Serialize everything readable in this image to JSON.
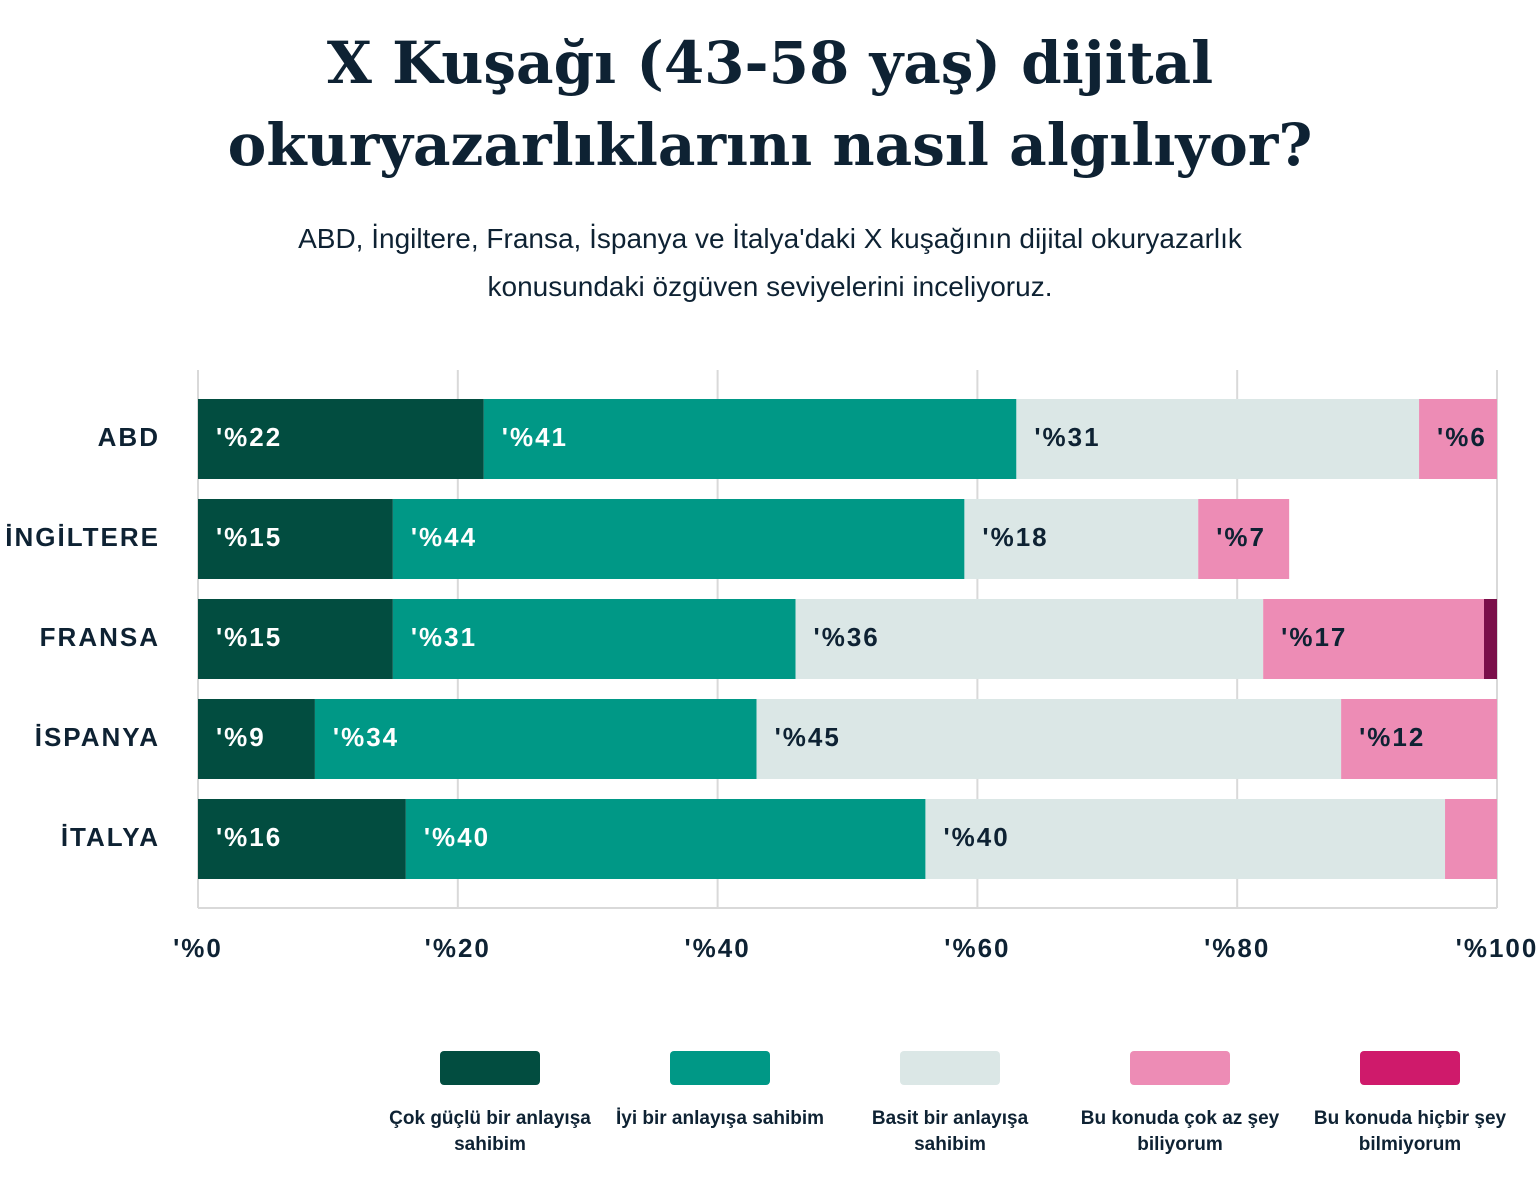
{
  "chart_data": {
    "type": "stacked-bar-horizontal",
    "title": "X Kuşağı (43-58 yaş) dijital okuryazarlıklarını nasıl algılıyor?",
    "subtitle": "ABD, İngiltere, Fransa, İspanya ve İtalya'daki X kuşağının dijital okuryazarlık konusundaki özgüven seviyelerini inceliyoruz.",
    "categories": [
      "ABD",
      "İNGİLTERE",
      "FRANSA",
      "İSPANYA",
      "İTALYA"
    ],
    "series": [
      {
        "name": "Çok güçlü bir anlayışa sahibim",
        "color": "#024d40",
        "values": [
          22,
          15,
          15,
          9,
          16
        ],
        "value_labels": [
          "'%22",
          "'%15",
          "'%15",
          "'%9",
          "'%16"
        ]
      },
      {
        "name": "İyi bir anlayışa sahibim",
        "color": "#009886",
        "values": [
          41,
          44,
          31,
          34,
          40
        ],
        "value_labels": [
          "'%41",
          "'%44",
          "'%31",
          "'%34",
          "'%40"
        ]
      },
      {
        "name": "Basit bir anlayışa sahibim",
        "color": "#dbe7e6",
        "values": [
          31,
          18,
          36,
          45,
          40
        ],
        "value_labels": [
          "'%31",
          "'%18",
          "'%36",
          "'%45",
          "'%40"
        ]
      },
      {
        "name": "Bu konuda çok az şey biliyorum",
        "color": "#ed8cb5",
        "values": [
          6,
          7,
          17,
          12,
          4
        ],
        "value_labels": [
          "'%6",
          "'%7",
          "'%17",
          "'%12",
          null
        ]
      },
      {
        "name": "Bu konuda hiçbir şey bilmiyorum",
        "color": "#cf1a6b",
        "values": [
          0,
          0,
          1,
          0,
          0
        ],
        "value_labels": [
          null,
          null,
          null,
          null,
          null
        ]
      }
    ],
    "xlim": [
      0,
      100
    ],
    "xticks": [
      {
        "value": 0,
        "label": "'%0"
      },
      {
        "value": 20,
        "label": "'%20"
      },
      {
        "value": 40,
        "label": "'%40"
      },
      {
        "value": 60,
        "label": "'%60"
      },
      {
        "value": 80,
        "label": "'%80"
      },
      {
        "value": 100,
        "label": "'%100"
      }
    ],
    "grid": true
  }
}
